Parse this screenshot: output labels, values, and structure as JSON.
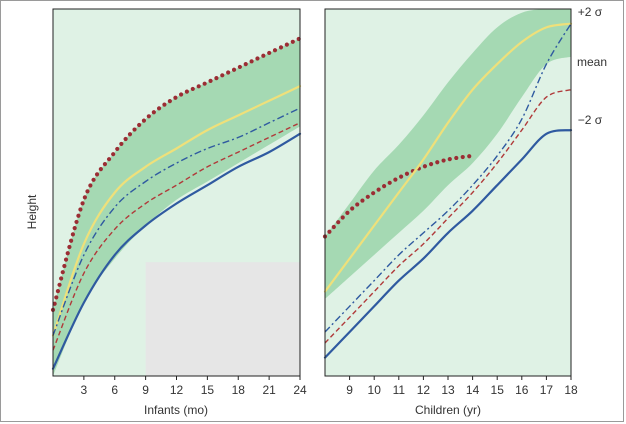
{
  "chart_data": [
    {
      "type": "line",
      "panel": "infants",
      "xlabel": "Infants (mo)",
      "ylabel": "Height",
      "x_ticks": [
        3,
        6,
        9,
        12,
        15,
        18,
        21,
        24
      ],
      "xlim": [
        0,
        24
      ],
      "ylim": [
        0,
        100
      ],
      "band": {
        "x": [
          0,
          3,
          6,
          9,
          12,
          15,
          18,
          21,
          24
        ],
        "lower": [
          0,
          20,
          32,
          41,
          48,
          53,
          58,
          63,
          68
        ],
        "upper": [
          18,
          48,
          61,
          70,
          76,
          80,
          84,
          88,
          92
        ]
      },
      "series": [
        {
          "key": "red_dotted",
          "color": "#9b2d34",
          "style": "dotted",
          "x": [
            0,
            3,
            6,
            9,
            12,
            15,
            18,
            21,
            24
          ],
          "y": [
            18,
            48,
            61,
            70,
            76,
            80,
            84,
            88,
            92
          ]
        },
        {
          "key": "yellow",
          "color": "#efe07a",
          "style": "solid",
          "x": [
            0,
            3,
            6,
            9,
            12,
            15,
            18,
            21,
            24
          ],
          "y": [
            11,
            36,
            50,
            57,
            62,
            67,
            71,
            75,
            79
          ]
        },
        {
          "key": "blue_dashdot",
          "color": "#2f5aa0",
          "style": "dashdot",
          "x": [
            0,
            3,
            6,
            9,
            12,
            15,
            18,
            21,
            24
          ],
          "y": [
            11,
            33,
            46,
            53,
            58,
            62,
            65,
            69,
            73
          ]
        },
        {
          "key": "red_dashed",
          "color": "#b03a3a",
          "style": "dashed",
          "x": [
            0,
            3,
            6,
            9,
            12,
            15,
            18,
            21,
            24
          ],
          "y": [
            7,
            28,
            40,
            47,
            52,
            57,
            61,
            65,
            69
          ]
        },
        {
          "key": "blue_solid",
          "color": "#2f5aa0",
          "style": "solid",
          "x": [
            0,
            3,
            6,
            9,
            12,
            15,
            18,
            21,
            24
          ],
          "y": [
            2,
            20,
            33,
            41,
            47,
            52,
            57,
            61,
            66
          ]
        }
      ]
    },
    {
      "type": "line",
      "panel": "children",
      "xlabel": "Children (yr)",
      "x_ticks": [
        9,
        10,
        11,
        12,
        13,
        14,
        15,
        16,
        17,
        18
      ],
      "xlim": [
        8,
        18
      ],
      "ylim": [
        0,
        100
      ],
      "band_labels": [
        "+2 σ",
        "mean",
        "−2 σ"
      ],
      "band": {
        "x": [
          8,
          9,
          10,
          11,
          12,
          13,
          14,
          15,
          16,
          17,
          18
        ],
        "lower": [
          21,
          27,
          33,
          39,
          45,
          52,
          58,
          66,
          76,
          85,
          87
        ],
        "upper": [
          38,
          47,
          56,
          63,
          71,
          80,
          88,
          95,
          99,
          100,
          100
        ]
      },
      "series": [
        {
          "key": "red_dotted",
          "color": "#9b2d34",
          "style": "dotted",
          "x": [
            8,
            9,
            10,
            11,
            12,
            13,
            14
          ],
          "y": [
            38,
            45,
            50,
            54,
            57,
            59,
            60
          ]
        },
        {
          "key": "yellow",
          "color": "#efe07a",
          "style": "solid",
          "x": [
            8,
            9,
            10,
            11,
            12,
            13,
            14,
            15,
            16,
            17,
            18
          ],
          "y": [
            23,
            32,
            41,
            50,
            59,
            69,
            78,
            85,
            91,
            95,
            96
          ]
        },
        {
          "key": "blue_dashdot",
          "color": "#2f5aa0",
          "style": "dashdot",
          "x": [
            8,
            9,
            10,
            11,
            12,
            13,
            14,
            15,
            16,
            17,
            18
          ],
          "y": [
            12,
            19,
            26,
            33,
            39,
            45,
            52,
            60,
            70,
            85,
            96
          ]
        },
        {
          "key": "red_dashed",
          "color": "#b03a3a",
          "style": "dashed",
          "x": [
            8,
            9,
            10,
            11,
            12,
            13,
            14,
            15,
            16,
            17,
            18
          ],
          "y": [
            9,
            16,
            23,
            30,
            36,
            43,
            50,
            58,
            67,
            76,
            78
          ]
        },
        {
          "key": "blue_solid",
          "color": "#2f5aa0",
          "style": "solid",
          "x": [
            8,
            9,
            10,
            11,
            12,
            13,
            14,
            15,
            16,
            17,
            18
          ],
          "y": [
            5,
            12,
            19,
            26,
            32,
            39,
            45,
            52,
            59,
            66,
            67
          ]
        }
      ]
    }
  ],
  "colors": {
    "panel_bg": "#dff2e5",
    "band": "#a5d9b3",
    "inset": "#e6e6e6",
    "axis": "#222222"
  }
}
